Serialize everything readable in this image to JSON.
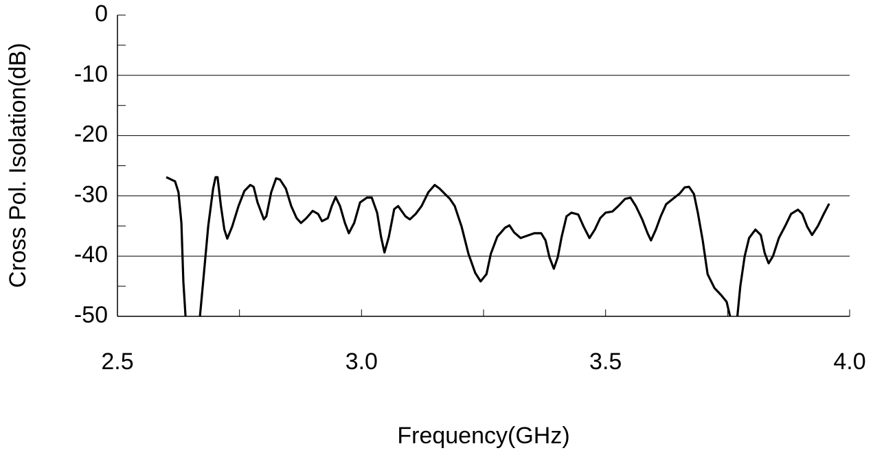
{
  "chart_data": {
    "type": "line",
    "x_label": "Frequency(GHz)",
    "y_label": "Cross Pol. Isolation(dB)",
    "xlim": [
      2.5,
      4.0
    ],
    "xticks": [
      2.5,
      {
        "value": 3,
        "label": "3.0"
      },
      3.5,
      {
        "value": 4,
        "label": "4.0"
      }
    ],
    "xminorticks": [
      2.75,
      3.25,
      3.75
    ],
    "ylim": [
      -50,
      0
    ],
    "yticks": [
      0,
      -10,
      -20,
      -30,
      -40,
      -50
    ],
    "yminorticks": [
      -5,
      -15,
      -25,
      -35,
      -45
    ],
    "grid": true,
    "x": [
      2.6,
      2.618,
      2.625,
      2.631,
      2.635,
      2.641,
      2.655,
      2.669,
      2.677,
      2.686,
      2.696,
      2.701,
      2.705,
      2.712,
      2.719,
      2.725,
      2.735,
      2.748,
      2.76,
      2.772,
      2.779,
      2.787,
      2.8,
      2.805,
      2.815,
      2.825,
      2.833,
      2.845,
      2.856,
      2.867,
      2.876,
      2.887,
      2.9,
      2.911,
      2.919,
      2.931,
      2.939,
      2.947,
      2.956,
      2.966,
      2.974,
      2.985,
      2.997,
      3.011,
      3.021,
      3.032,
      3.04,
      3.047,
      3.056,
      3.067,
      3.075,
      3.09,
      3.099,
      3.111,
      3.123,
      3.137,
      3.15,
      3.16,
      3.171,
      3.181,
      3.191,
      3.205,
      3.219,
      3.233,
      3.244,
      3.256,
      3.265,
      3.278,
      3.294,
      3.303,
      3.313,
      3.326,
      3.34,
      3.354,
      3.368,
      3.377,
      3.385,
      3.394,
      3.402,
      3.41,
      3.42,
      3.43,
      3.444,
      3.455,
      3.467,
      3.478,
      3.489,
      3.5,
      3.514,
      3.526,
      3.54,
      3.551,
      3.562,
      3.575,
      3.586,
      3.593,
      3.603,
      3.613,
      3.624,
      3.638,
      3.652,
      3.662,
      3.671,
      3.681,
      3.689,
      3.699,
      3.709,
      3.723,
      3.737,
      3.748,
      3.755,
      3.762,
      3.77,
      3.776,
      3.785,
      3.794,
      3.807,
      3.818,
      3.826,
      3.834,
      3.843,
      3.855,
      3.868,
      3.88,
      3.894,
      3.903,
      3.913,
      3.923,
      3.935,
      3.947,
      3.958
    ],
    "series": [
      {
        "color": "#000000",
        "values": [
          -26.9,
          -27.6,
          -29.4,
          -34.5,
          -44.2,
          -52,
          -58,
          -50,
          -43,
          -35,
          -28.8,
          -26.9,
          -26.9,
          -31.7,
          -35.6,
          -37.1,
          -35.1,
          -31.7,
          -29.2,
          -28.2,
          -28.5,
          -31.1,
          -33.9,
          -33.4,
          -29.4,
          -27.1,
          -27.3,
          -28.8,
          -31.7,
          -33.7,
          -34.5,
          -33.7,
          -32.5,
          -33.0,
          -34.2,
          -33.7,
          -31.7,
          -30.2,
          -31.7,
          -34.5,
          -36.2,
          -34.5,
          -31.1,
          -30.3,
          -30.3,
          -32.8,
          -36.8,
          -39.4,
          -36.8,
          -32.2,
          -31.7,
          -33.4,
          -33.9,
          -33.0,
          -31.7,
          -29.4,
          -28.2,
          -28.8,
          -29.7,
          -30.5,
          -31.7,
          -35.1,
          -39.6,
          -42.8,
          -44.2,
          -43.0,
          -39.6,
          -36.8,
          -35.3,
          -34.9,
          -36.1,
          -37.0,
          -36.6,
          -36.2,
          -36.2,
          -37.4,
          -40.2,
          -42.1,
          -40.2,
          -36.8,
          -33.4,
          -32.8,
          -33.1,
          -35.1,
          -37.0,
          -35.6,
          -33.7,
          -32.8,
          -32.6,
          -31.7,
          -30.5,
          -30.3,
          -31.7,
          -33.9,
          -36.2,
          -37.4,
          -35.6,
          -33.4,
          -31.4,
          -30.5,
          -29.6,
          -28.6,
          -28.5,
          -29.7,
          -32.8,
          -37.4,
          -43.0,
          -45.3,
          -46.5,
          -47.6,
          -50,
          -55,
          -50,
          -45,
          -40,
          -37,
          -35.6,
          -36.5,
          -39.5,
          -41.2,
          -40,
          -37,
          -35,
          -33,
          -32.3,
          -33,
          -35.1,
          -36.5,
          -35,
          -33,
          -31.3
        ]
      }
    ]
  }
}
